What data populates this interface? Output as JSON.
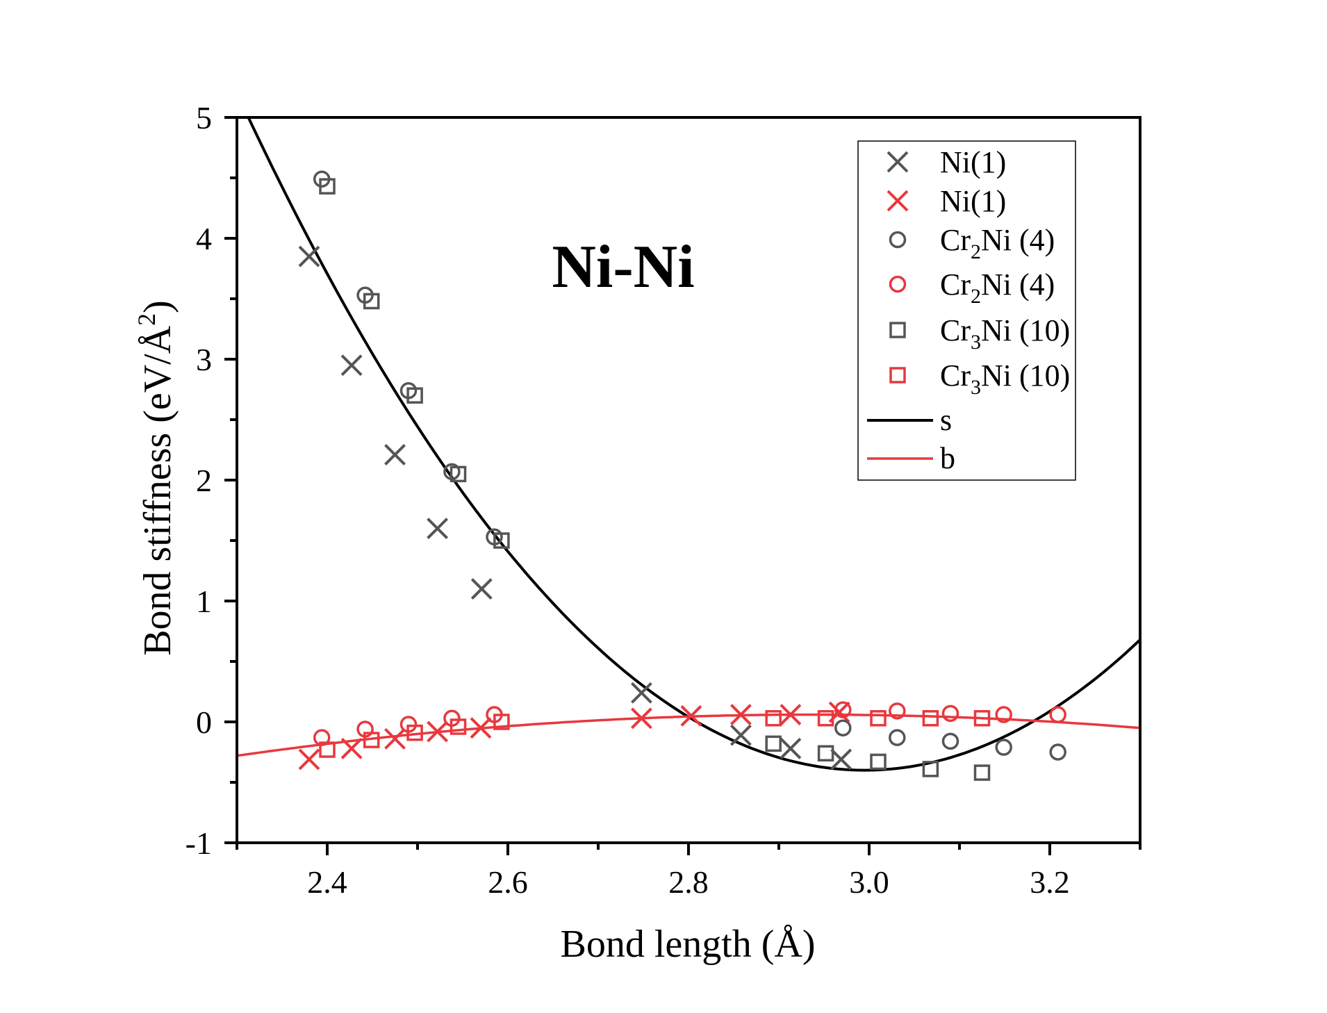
{
  "chart_data": {
    "type": "scatter",
    "title": "Ni-Ni",
    "xlabel": "Bond length (Å)",
    "ylabel": "Bond stiffness (eV/Å²)",
    "ylabel_parts": {
      "main": "Bond stiffness (eV/Å",
      "sup": "2",
      "close": ")"
    },
    "xlim": [
      2.3,
      3.3
    ],
    "ylim": [
      -1,
      5
    ],
    "xticks": [
      2.4,
      2.6,
      2.8,
      3.0,
      3.2
    ],
    "xtick_labels": [
      "2.4",
      "2.6",
      "2.8",
      "3.0",
      "3.2"
    ],
    "xminor": [
      2.3,
      2.5,
      2.7,
      2.9,
      3.1,
      3.3
    ],
    "yticks": [
      -1,
      0,
      1,
      2,
      3,
      4,
      5
    ],
    "ytick_labels": [
      "-1",
      "0",
      "1",
      "2",
      "3",
      "4",
      "5"
    ],
    "yminor": [
      -0.5,
      0.5,
      1.5,
      2.5,
      3.5,
      4.5
    ],
    "grid": false,
    "legend_position": "top-right",
    "colors": {
      "gray": "#555555",
      "red": "#e8383d",
      "black": "#000000"
    },
    "series": [
      {
        "name": "Ni(1)",
        "legend_main": "Ni(1)",
        "legend_sub": "",
        "legend_tail": "",
        "marker": "x",
        "color": "#555555",
        "x": [
          2.38,
          2.427,
          2.475,
          2.522,
          2.571,
          2.748,
          2.858,
          2.913,
          2.969
        ],
        "y": [
          3.85,
          2.95,
          2.21,
          1.6,
          1.1,
          0.24,
          -0.11,
          -0.22,
          -0.31
        ]
      },
      {
        "name": "Ni(1)",
        "legend_main": "Ni(1)",
        "legend_sub": "",
        "legend_tail": "",
        "marker": "x",
        "color": "#e8383d",
        "x": [
          2.38,
          2.427,
          2.475,
          2.522,
          2.57,
          2.748,
          2.803,
          2.858,
          2.913,
          2.967
        ],
        "y": [
          -0.31,
          -0.22,
          -0.14,
          -0.08,
          -0.05,
          0.03,
          0.05,
          0.06,
          0.06,
          0.08
        ]
      },
      {
        "name": "Cr2Ni (4)",
        "legend_main": "Cr",
        "legend_sub": "2",
        "legend_tail": "Ni (4)",
        "marker": "circle",
        "color": "#555555",
        "x": [
          2.394,
          2.442,
          2.49,
          2.538,
          2.585,
          2.971,
          3.031,
          3.09,
          3.149,
          3.209
        ],
        "y": [
          4.49,
          3.53,
          2.74,
          2.07,
          1.53,
          -0.05,
          -0.13,
          -0.16,
          -0.21,
          -0.25
        ]
      },
      {
        "name": "Cr2Ni (4)",
        "legend_main": "Cr",
        "legend_sub": "2",
        "legend_tail": "Ni (4)",
        "marker": "circle",
        "color": "#e8383d",
        "x": [
          2.394,
          2.442,
          2.49,
          2.538,
          2.585,
          2.971,
          3.031,
          3.09,
          3.149,
          3.209
        ],
        "y": [
          -0.13,
          -0.06,
          -0.02,
          0.03,
          0.06,
          0.1,
          0.09,
          0.07,
          0.06,
          0.06
        ]
      },
      {
        "name": "Cr3Ni (10)",
        "legend_main": "Cr",
        "legend_sub": "3",
        "legend_tail": "Ni (10)",
        "marker": "square",
        "color": "#555555",
        "x": [
          2.4,
          2.449,
          2.497,
          2.545,
          2.593,
          2.894,
          2.952,
          3.01,
          3.068,
          3.125
        ],
        "y": [
          4.43,
          3.48,
          2.7,
          2.05,
          1.5,
          -0.18,
          -0.26,
          -0.33,
          -0.39,
          -0.42
        ]
      },
      {
        "name": "Cr3Ni (10)",
        "legend_main": "Cr",
        "legend_sub": "3",
        "legend_tail": "Ni (10)",
        "marker": "square",
        "color": "#e8383d",
        "x": [
          2.4,
          2.449,
          2.497,
          2.545,
          2.593,
          2.894,
          2.952,
          3.01,
          3.068,
          3.125
        ],
        "y": [
          -0.23,
          -0.15,
          -0.09,
          -0.04,
          0.0,
          0.03,
          0.03,
          0.03,
          0.03,
          0.03
        ]
      }
    ],
    "fit_curves": [
      {
        "name": "s",
        "color": "#000000",
        "form": "quadratic",
        "a": 11.6,
        "x0": 2.995,
        "c": -0.4
      },
      {
        "name": "b",
        "color": "#e8383d",
        "form": "quadratic",
        "a": -0.838,
        "x0": 2.937,
        "c": 0.06
      }
    ]
  }
}
